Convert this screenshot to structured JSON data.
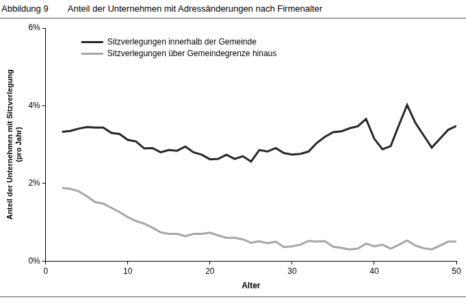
{
  "chart_data": {
    "type": "line",
    "title": "Abbildung 9        Anteil der Unternehmen mit Adressänderungen nach Firmenalter",
    "x_label": "Alter",
    "y_label": [
      "Anteil der Unternehmen mit Sitzverlegung",
      "(pro Jahr)"
    ],
    "x": [
      2,
      3,
      4,
      5,
      6,
      7,
      8,
      9,
      10,
      11,
      12,
      13,
      14,
      15,
      16,
      17,
      18,
      19,
      20,
      21,
      22,
      23,
      24,
      25,
      26,
      27,
      28,
      29,
      30,
      31,
      32,
      33,
      34,
      35,
      36,
      37,
      38,
      39,
      40,
      41,
      42,
      43,
      44,
      45,
      46,
      47,
      48,
      49,
      50
    ],
    "series": [
      {
        "name": "Sitzverlegungen innerhalb der Gemeinde",
        "color": "#262626",
        "values": [
          3.33,
          3.35,
          3.41,
          3.45,
          3.44,
          3.44,
          3.3,
          3.27,
          3.12,
          3.08,
          2.9,
          2.91,
          2.8,
          2.86,
          2.84,
          2.95,
          2.8,
          2.74,
          2.62,
          2.63,
          2.74,
          2.63,
          2.7,
          2.56,
          2.86,
          2.82,
          2.91,
          2.78,
          2.74,
          2.76,
          2.82,
          3.04,
          3.2,
          3.32,
          3.34,
          3.42,
          3.47,
          3.66,
          3.15,
          2.88,
          2.96,
          3.5,
          4.02,
          3.56,
          3.24,
          2.92,
          3.15,
          3.38,
          3.48
        ]
      },
      {
        "name": "Sitzverlegungen über Gemeindegrenze hinaus",
        "color": "#a6a6a6",
        "values": [
          1.88,
          1.86,
          1.8,
          1.67,
          1.52,
          1.48,
          1.37,
          1.26,
          1.13,
          1.03,
          0.96,
          0.86,
          0.74,
          0.7,
          0.7,
          0.64,
          0.7,
          0.7,
          0.73,
          0.66,
          0.6,
          0.6,
          0.56,
          0.47,
          0.51,
          0.46,
          0.5,
          0.36,
          0.38,
          0.42,
          0.52,
          0.5,
          0.51,
          0.37,
          0.34,
          0.3,
          0.32,
          0.45,
          0.38,
          0.42,
          0.32,
          0.42,
          0.53,
          0.4,
          0.33,
          0.3,
          0.4,
          0.5,
          0.5
        ]
      }
    ],
    "xlim": [
      0,
      50
    ],
    "xticks": [
      0,
      10,
      20,
      30,
      40,
      50
    ],
    "ylim": [
      0,
      6
    ],
    "yticks": [
      {
        "value": 0,
        "label": "0%"
      },
      {
        "value": 2,
        "label": "2%"
      },
      {
        "value": 4,
        "label": "4%"
      },
      {
        "value": 6,
        "label": "6%"
      }
    ],
    "grid": false,
    "legend": "upper left"
  }
}
